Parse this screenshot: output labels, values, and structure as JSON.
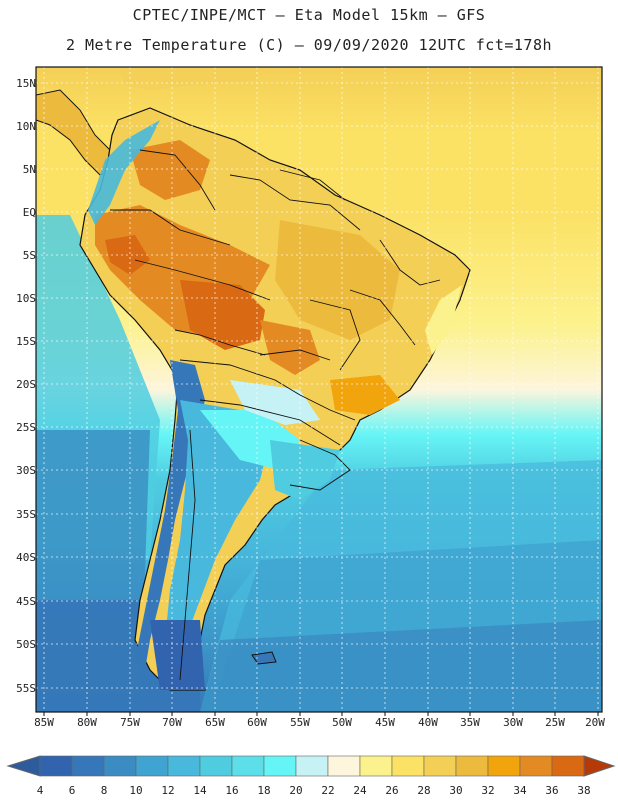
{
  "title": {
    "line1": "CPTEC/INPE/MCT –  Eta Model 15km – GFS",
    "line2": "2 Metre Temperature (C) – 09/09/2020 12UTC fct=178h"
  },
  "map": {
    "lat_labels": [
      "15N",
      "10N",
      "5N",
      "EQ",
      "5S",
      "10S",
      "15S",
      "20S",
      "25S",
      "30S",
      "35S",
      "40S",
      "45S",
      "50S",
      "55S"
    ],
    "lon_labels": [
      "85W",
      "80W",
      "75W",
      "70W",
      "65W",
      "60W",
      "55W",
      "50W",
      "45W",
      "40W",
      "35W",
      "30W",
      "25W",
      "20W"
    ]
  },
  "colorbar": {
    "labels": [
      "4",
      "6",
      "8",
      "10",
      "12",
      "14",
      "16",
      "18",
      "20",
      "22",
      "24",
      "26",
      "28",
      "30",
      "32",
      "34",
      "36",
      "38"
    ],
    "colors": [
      "#3163ae",
      "#3577b8",
      "#3a8cc2",
      "#3fa4d1",
      "#48b9dc",
      "#4fcce0",
      "#5ddfe9",
      "#66f5f6",
      "#c6f2f6",
      "#fdf5dc",
      "#fcf28d",
      "#fbe164",
      "#f4cf56",
      "#ecbb3d",
      "#f1a40c",
      "#e48a22",
      "#d96912",
      "#c54107"
    ],
    "low_color": "#2e5b9c",
    "high_color": "#b53a08"
  }
}
